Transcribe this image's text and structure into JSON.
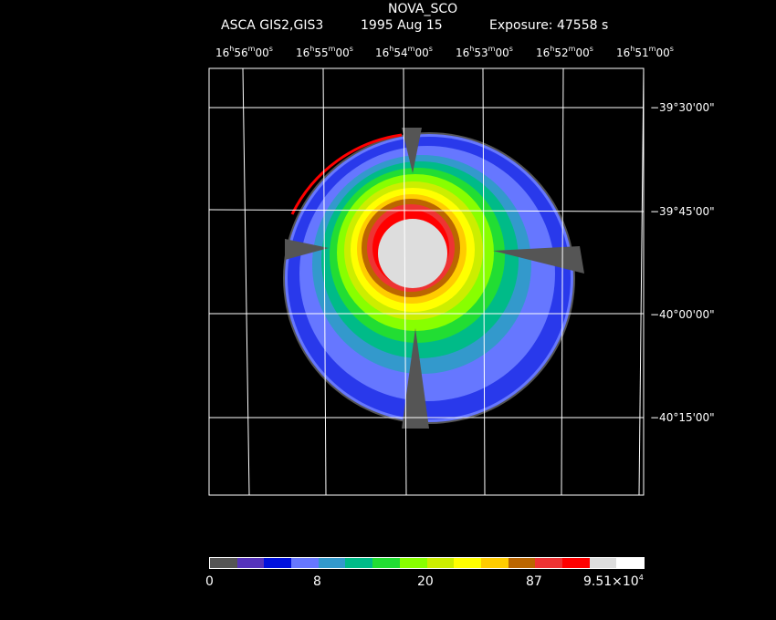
{
  "header": {
    "target": "NOVA_SCO",
    "instrument": "ASCA GIS2,GIS3",
    "date": "1995 Aug 15",
    "exposure": "Exposure: 47558 s"
  },
  "ra_labels": [
    {
      "h": "16",
      "m": "56",
      "s": "00"
    },
    {
      "h": "16",
      "m": "55",
      "s": "00"
    },
    {
      "h": "16",
      "m": "54",
      "s": "00"
    },
    {
      "h": "16",
      "m": "53",
      "s": "00"
    },
    {
      "h": "16",
      "m": "52",
      "s": "00"
    },
    {
      "h": "16",
      "m": "51",
      "s": "00"
    }
  ],
  "dec_labels": [
    "−39°30'00\"",
    "−39°45'00\"",
    "−40°00'00\"",
    "−40°15'00\""
  ],
  "colorbar": {
    "colors": [
      "#555555",
      "#5533bb",
      "#0011dd",
      "#6677ff",
      "#3399cc",
      "#00bb88",
      "#22dd33",
      "#88ff00",
      "#ccee00",
      "#ffff00",
      "#ffcc00",
      "#bb6600",
      "#ee3333",
      "#ff0000",
      "#dddddd",
      "#ffffff"
    ],
    "ticks": [
      "0",
      "8",
      "20",
      "87",
      "9.51×10"
    ],
    "last_exp": "4"
  }
}
